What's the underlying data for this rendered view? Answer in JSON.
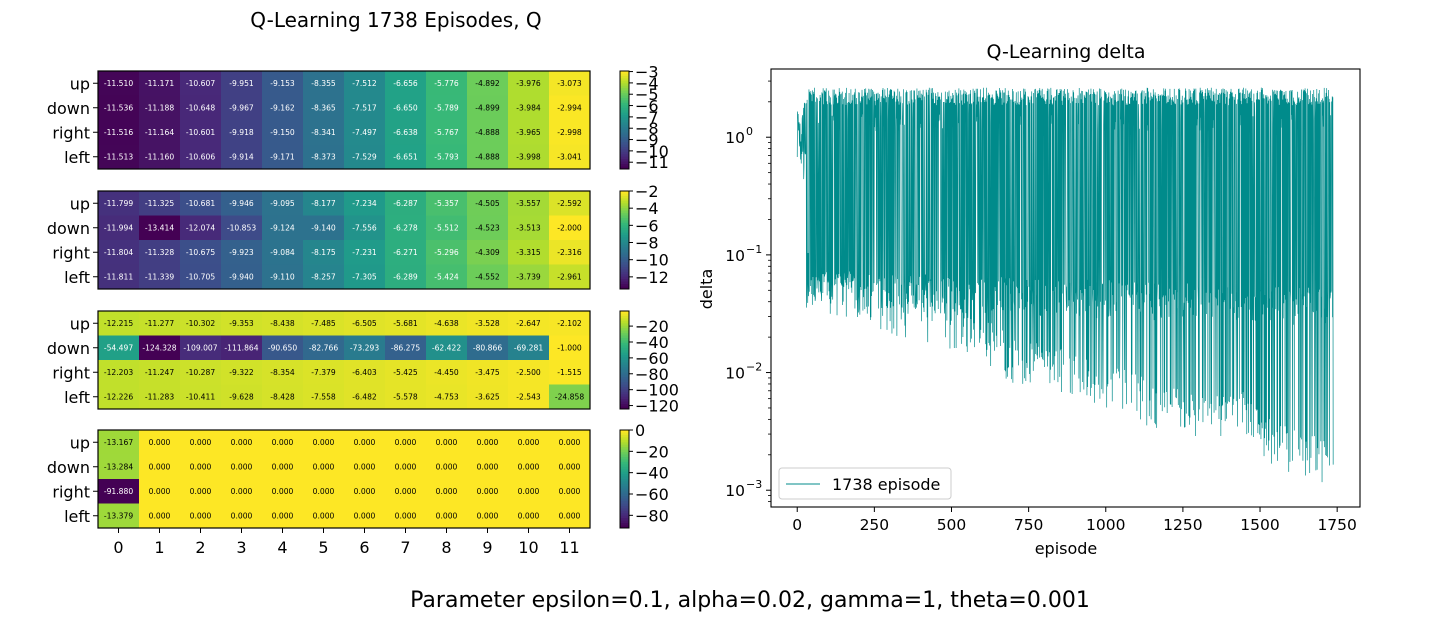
{
  "caption": "Parameter epsilon=0.1, alpha=0.02, gamma=1, theta=0.001",
  "chart_data": [
    {
      "type": "heatmap",
      "title": "Q-Learning 1738 Episodes, Q",
      "panel_titles": [
        "",
        "",
        "",
        ""
      ],
      "row_labels": [
        "up",
        "down",
        "right",
        "left"
      ],
      "col_labels": [
        "0",
        "1",
        "2",
        "3",
        "4",
        "5",
        "6",
        "7",
        "8",
        "9",
        "10",
        "11"
      ],
      "colormap": "viridis",
      "panels": [
        {
          "values": [
            [
              -11.51,
              -11.171,
              -10.607,
              -9.951,
              -9.153,
              -8.355,
              -7.512,
              -6.656,
              -5.776,
              -4.892,
              -3.976,
              -3.073
            ],
            [
              -11.536,
              -11.188,
              -10.648,
              -9.967,
              -9.162,
              -8.365,
              -7.517,
              -6.65,
              -5.789,
              -4.899,
              -3.984,
              -2.994
            ],
            [
              -11.516,
              -11.164,
              -10.601,
              -9.918,
              -9.15,
              -8.341,
              -7.497,
              -6.638,
              -5.767,
              -4.888,
              -3.965,
              -2.998
            ],
            [
              -11.513,
              -11.16,
              -10.606,
              -9.914,
              -9.171,
              -8.373,
              -7.529,
              -6.651,
              -5.793,
              -4.888,
              -3.998,
              -3.041
            ]
          ],
          "text": [
            [
              "-11.510",
              "-11.171",
              "-10.607",
              "-9.951",
              "-9.153",
              "-8.355",
              "-7.512",
              "-6.656",
              "-5.776",
              "-4.892",
              "-3.976",
              "-3.073"
            ],
            [
              "-11.536",
              "-11.188",
              "-10.648",
              "-9.967",
              "-9.162",
              "-8.365",
              "-7.517",
              "-6.650",
              "-5.789",
              "-4.899",
              "-3.984",
              "-2.994"
            ],
            [
              "-11.516",
              "-11.164",
              "-10.601",
              "-9.918",
              "-9.150",
              "-8.341",
              "-7.497",
              "-6.638",
              "-5.767",
              "-4.888",
              "-3.965",
              "-2.998"
            ],
            [
              "-11.513",
              "-11.160",
              "-10.606",
              "-9.914",
              "-9.171",
              "-8.373",
              "-7.529",
              "-6.651",
              "-5.793",
              "-4.888",
              "-3.998",
              "-3.041"
            ]
          ],
          "colorbar": {
            "min": -11.6,
            "max": -2.95,
            "ticks": [
              -3,
              -4,
              -5,
              -6,
              -7,
              -8,
              -9,
              -10,
              -11
            ],
            "tick_labels": [
              "−3",
              "−4",
              "−5",
              "−6",
              "−7",
              "−8",
              "−9",
              "−10",
              "−11"
            ]
          }
        },
        {
          "values": [
            [
              -11.799,
              -11.325,
              -10.681,
              -9.946,
              -9.095,
              -8.177,
              -7.234,
              -6.287,
              -5.357,
              -4.505,
              -3.557,
              -2.592
            ],
            [
              -11.994,
              -13.414,
              -12.074,
              -10.853,
              -9.124,
              -9.14,
              -7.556,
              -6.278,
              -5.512,
              -4.523,
              -3.513,
              -2.0
            ],
            [
              -11.804,
              -11.328,
              -10.675,
              -9.923,
              -9.084,
              -8.175,
              -7.231,
              -6.271,
              -5.296,
              -4.309,
              -3.315,
              -2.316
            ],
            [
              -11.811,
              -11.339,
              -10.705,
              -9.94,
              -9.11,
              -8.257,
              -7.305,
              -6.289,
              -5.424,
              -4.552,
              -3.739,
              -2.961
            ]
          ],
          "text": [
            [
              "-11.799",
              "-11.325",
              "-10.681",
              "-9.946",
              "-9.095",
              "-8.177",
              "-7.234",
              "-6.287",
              "-5.357",
              "-4.505",
              "-3.557",
              "-2.592"
            ],
            [
              "-11.994",
              "-13.414",
              "-12.074",
              "-10.853",
              "-9.124",
              "-9.140",
              "-7.556",
              "-6.278",
              "-5.512",
              "-4.523",
              "-3.513",
              "-2.000"
            ],
            [
              "-11.804",
              "-11.328",
              "-10.675",
              "-9.923",
              "-9.084",
              "-8.175",
              "-7.231",
              "-6.271",
              "-5.296",
              "-4.309",
              "-3.315",
              "-2.316"
            ],
            [
              "-11.811",
              "-11.339",
              "-10.705",
              "-9.940",
              "-9.110",
              "-8.257",
              "-7.305",
              "-6.289",
              "-5.424",
              "-4.552",
              "-3.739",
              "-2.961"
            ]
          ],
          "colorbar": {
            "min": -13.414,
            "max": -2.0,
            "ticks": [
              -2,
              -4,
              -6,
              -8,
              -10,
              -12
            ],
            "tick_labels": [
              "−2",
              "−4",
              "−6",
              "−8",
              "−10",
              "−12"
            ]
          }
        },
        {
          "values": [
            [
              -12.215,
              -11.277,
              -10.302,
              -9.353,
              -8.438,
              -7.485,
              -6.505,
              -5.681,
              -4.638,
              -3.528,
              -2.647,
              -2.102
            ],
            [
              -54.497,
              -124.328,
              -109.007,
              -111.864,
              -90.65,
              -82.766,
              -73.293,
              -86.275,
              -62.422,
              -80.866,
              -69.281,
              -1.0
            ],
            [
              -12.203,
              -11.247,
              -10.287,
              -9.322,
              -8.354,
              -7.379,
              -6.403,
              -5.425,
              -4.45,
              -3.475,
              -2.5,
              -1.515
            ],
            [
              -12.226,
              -11.283,
              -10.411,
              -9.628,
              -8.428,
              -7.558,
              -6.482,
              -5.578,
              -4.753,
              -3.625,
              -2.543,
              -24.858
            ]
          ],
          "text": [
            [
              "-12.215",
              "-11.277",
              "-10.302",
              "-9.353",
              "-8.438",
              "-7.485",
              "-6.505",
              "-5.681",
              "-4.638",
              "-3.528",
              "-2.647",
              "-2.102"
            ],
            [
              "-54.497",
              "-124.328",
              "-109.007",
              "-111.864",
              "-90.650",
              "-82.766",
              "-73.293",
              "-86.275",
              "-62.422",
              "-80.866",
              "-69.281",
              "-1.000"
            ],
            [
              "-12.203",
              "-11.247",
              "-10.287",
              "-9.322",
              "-8.354",
              "-7.379",
              "-6.403",
              "-5.425",
              "-4.450",
              "-3.475",
              "-2.500",
              "-1.515"
            ],
            [
              "-12.226",
              "-11.283",
              "-10.411",
              "-9.628",
              "-8.428",
              "-7.558",
              "-6.482",
              "-5.578",
              "-4.753",
              "-3.625",
              "-2.543",
              "-24.858"
            ]
          ],
          "colorbar": {
            "min": -124.328,
            "max": -1.0,
            "ticks": [
              -20,
              -40,
              -60,
              -80,
              -100,
              -120
            ],
            "tick_labels": [
              "−20",
              "−40",
              "−60",
              "−80",
              "−100",
              "−120"
            ]
          }
        },
        {
          "values": [
            [
              -13.167,
              0,
              0,
              0,
              0,
              0,
              0,
              0,
              0,
              0,
              0,
              0
            ],
            [
              -13.284,
              0,
              0,
              0,
              0,
              0,
              0,
              0,
              0,
              0,
              0,
              0
            ],
            [
              -91.88,
              0,
              0,
              0,
              0,
              0,
              0,
              0,
              0,
              0,
              0,
              0
            ],
            [
              -13.379,
              0,
              0,
              0,
              0,
              0,
              0,
              0,
              0,
              0,
              0,
              0
            ]
          ],
          "text": [
            [
              "-13.167",
              "0.000",
              "0.000",
              "0.000",
              "0.000",
              "0.000",
              "0.000",
              "0.000",
              "0.000",
              "0.000",
              "0.000",
              "0.000"
            ],
            [
              "-13.284",
              "0.000",
              "0.000",
              "0.000",
              "0.000",
              "0.000",
              "0.000",
              "0.000",
              "0.000",
              "0.000",
              "0.000",
              "0.000"
            ],
            [
              "-91.880",
              "0.000",
              "0.000",
              "0.000",
              "0.000",
              "0.000",
              "0.000",
              "0.000",
              "0.000",
              "0.000",
              "0.000",
              "0.000"
            ],
            [
              "-13.379",
              "0.000",
              "0.000",
              "0.000",
              "0.000",
              "0.000",
              "0.000",
              "0.000",
              "0.000",
              "0.000",
              "0.000",
              "0.000"
            ]
          ],
          "colorbar": {
            "min": -91.88,
            "max": 0.0,
            "ticks": [
              0,
              -20,
              -40,
              -60,
              -80
            ],
            "tick_labels": [
              "0",
              "−20",
              "−40",
              "−60",
              "−80"
            ]
          }
        }
      ]
    },
    {
      "type": "line",
      "title": "Q-Learning delta",
      "xlabel": "episode",
      "ylabel": "delta",
      "xlim": [
        -85,
        1824
      ],
      "ylim": [
        0.00072,
        3.8
      ],
      "yscale": "log",
      "x_ticks": [
        0,
        250,
        500,
        750,
        1000,
        1250,
        1500,
        1750
      ],
      "x_tick_labels": [
        "0",
        "250",
        "500",
        "750",
        "1000",
        "1250",
        "1500",
        "1750"
      ],
      "y_ticks": [
        0.001,
        0.01,
        0.1,
        1
      ],
      "y_tick_labels": [
        "10",
        "10",
        "10",
        "10"
      ],
      "y_tick_exponents": [
        "−3",
        "−2",
        "−1",
        "0"
      ],
      "legend": {
        "position": "lower-left",
        "entries": [
          "1738 episode"
        ]
      },
      "grid": false,
      "series": [
        {
          "name": "1738 episode",
          "color": "#008b8b",
          "n_points": 1738,
          "description": "oscillating between ~2 (upper envelope) and a decaying lower envelope from ~0.1 down to ~0.001",
          "upper_envelope": {
            "x": [
              0,
              1738
            ],
            "y": [
              2.2,
              2.2
            ]
          },
          "lower_envelope": {
            "x": [
              0,
              50,
              100,
              200,
              400,
              600,
              700,
              800,
              1000,
              1200,
              1400,
              1440,
              1500,
              1600,
              1738
            ],
            "y": [
              0.09,
              0.04,
              0.03,
              0.025,
              0.018,
              0.012,
              0.008,
              0.007,
              0.005,
              0.003,
              0.0025,
              0.003,
              0.0018,
              0.0014,
              0.001
            ]
          },
          "mid_band": {
            "x": [
              0,
              1738
            ],
            "y": [
              0.05,
              0.035
            ]
          }
        }
      ]
    }
  ]
}
